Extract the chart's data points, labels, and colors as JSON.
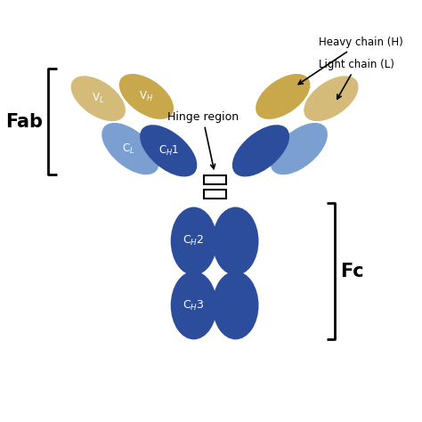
{
  "colors": {
    "dark_blue": "#2B4D9B",
    "light_blue": "#7B9FD0",
    "gold_dark": "#C9A84C",
    "gold_light": "#D4BB7A",
    "white": "#FFFFFF",
    "black": "#000000"
  },
  "background": "#FFFFFF",
  "fab_label": "Fab",
  "fc_label": "Fc",
  "hinge_label": "Hinge region",
  "heavy_label": "Heavy chain (H)",
  "light_label": "Light chain (L)",
  "vh_label": "V$_H$",
  "vl_label": "V$_L$",
  "ch1_label": "C$_H$1",
  "cl_label": "C$_L$",
  "ch2_label": "C$_H$2",
  "ch3_label": "C$_H$3"
}
